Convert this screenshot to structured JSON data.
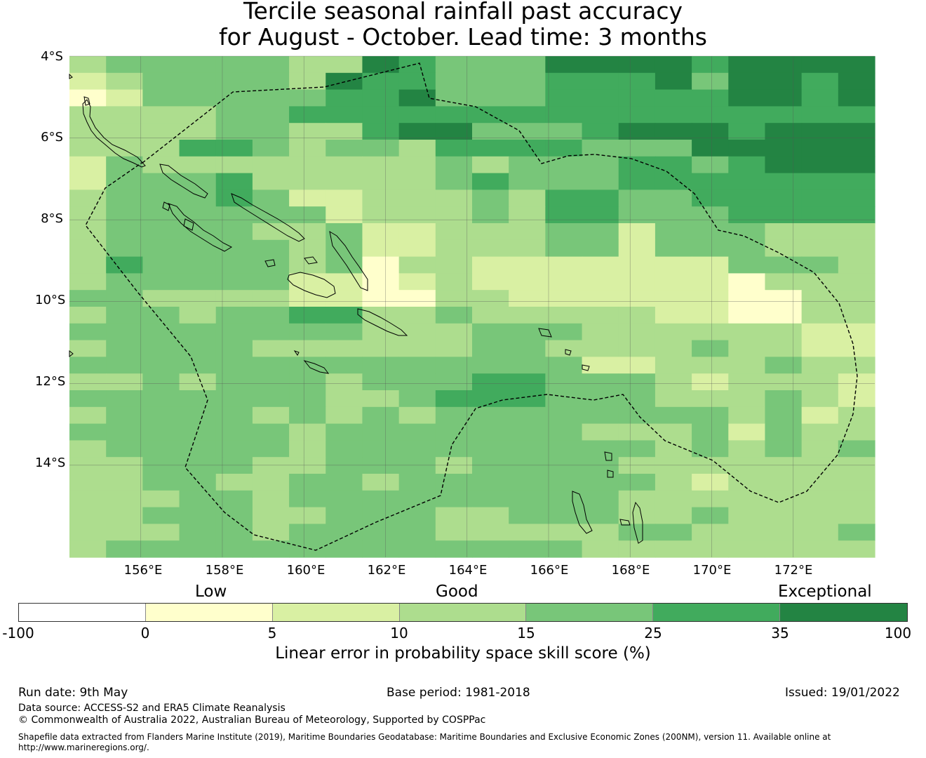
{
  "title_line1": "Tercile seasonal rainfall past accuracy",
  "title_line2": "for August - October. Lead time: 3 months",
  "map": {
    "lat_labels": [
      "4°S",
      "6°S",
      "8°S",
      "10°S",
      "12°S",
      "14°S"
    ],
    "lon_labels": [
      "156°E",
      "158°E",
      "160°E",
      "162°E",
      "164°E",
      "166°E",
      "168°E",
      "170°E",
      "172°E"
    ],
    "lon_range": [
      154.25,
      174.0
    ],
    "lat_range": [
      -16.25,
      -4.0
    ],
    "grid_step_deg": 0.833,
    "region_outline": "Solomon Islands EEZ (dashed)",
    "skill_grid_classes": [
      "3444443365444666656666",
      "2344443655444555646656",
      "1244444556444555556656",
      "3333445555555555555555",
      "3333443356644456665666",
      "3335543443555544466666",
      "2433333333434445545666",
      "2444533333454445555555",
      "3444542233343554455555",
      "3444444233343554445555",
      "3444433422333442444333",
      "3444443422333442444333",
      "3544443413322222224443",
      "3444442212322222221333",
      "4433332211332222221133",
      "3443445533433333221133",
      "4444444433344433333322",
      "3444433333344333343322",
      "4444444444444422333433",
      "3343444344455444323332",
      "4444444334555444333432",
      "3444434343444444443423",
      "4444443444444433342433",
      "3444443444444444343434",
      "3344433444344443333333",
      "3344334434444444323333",
      "3334434444444443333333",
      "3344433444334443343333",
      "3334434444333334433334",
      "3444444444444433333333"
    ],
    "legend_classes": [
      "#ffffff",
      "#ffffcc",
      "#d9f0a3",
      "#addd8e",
      "#78c679",
      "#41ab5d",
      "#238443"
    ]
  },
  "colorbar": {
    "category_low": "Low",
    "category_good": "Good",
    "category_exceptional": "Exceptional",
    "ticks": [
      "-100",
      "0",
      "5",
      "10",
      "15",
      "25",
      "35",
      "100"
    ],
    "colors": [
      "#ffffff",
      "#ffffcc",
      "#d9f0a3",
      "#addd8e",
      "#78c679",
      "#41ab5d",
      "#238443"
    ],
    "title": "Linear error in probability space skill score (%)"
  },
  "footer": {
    "run_date": "Run date: 9th May",
    "base_period": "Base period: 1981-2018",
    "issued": "Issued: 19/01/2022",
    "data_source": "Data source: ACCESS-S2 and ERA5 Climate Reanalysis",
    "copyright": "© Commonwealth of Australia 2022, Australian Bureau of Meteorology, Supported by COSPPac",
    "shapefile_line1": "Shapefile data extracted from Flanders Marine Institute (2019), Maritime Boundaries Geodatabase: Maritime Boundaries and Exclusive Economic Zones (200NM), version 11. Available online at",
    "shapefile_line2": "http://www.marineregions.org/."
  }
}
